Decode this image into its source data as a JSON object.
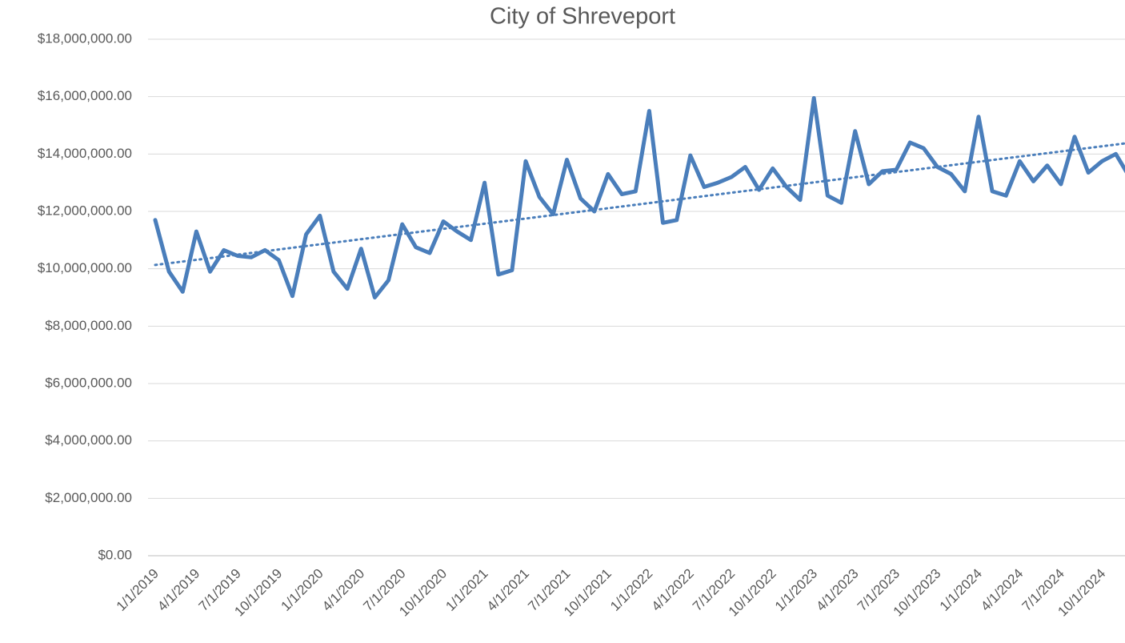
{
  "chart_data": {
    "type": "line",
    "title": "City of Shreveport",
    "categories": [
      "1/1/2019",
      null,
      null,
      "4/1/2019",
      null,
      null,
      "7/1/2019",
      null,
      null,
      "10/1/2019",
      null,
      null,
      "1/1/2020",
      null,
      null,
      "4/1/2020",
      null,
      null,
      "7/1/2020",
      null,
      null,
      "10/1/2020",
      null,
      null,
      "1/1/2021",
      null,
      null,
      "4/1/2021",
      null,
      null,
      "7/1/2021",
      null,
      null,
      "10/1/2021",
      null,
      null,
      "1/1/2022",
      null,
      null,
      "4/1/2022",
      null,
      null,
      "7/1/2022",
      null,
      null,
      "10/1/2022",
      null,
      null,
      "1/1/2023",
      null,
      null,
      "4/1/2023",
      null,
      null,
      "7/1/2023",
      null,
      null,
      "10/1/2023",
      null,
      null,
      "1/1/2024",
      null,
      null,
      "4/1/2024",
      null,
      null,
      "7/1/2024",
      null,
      null,
      "10/1/2024",
      null,
      null
    ],
    "series": [
      {
        "color": "#4a7ebb",
        "values": [
          11700000,
          9900000,
          9200000,
          11300000,
          9900000,
          10650000,
          10450000,
          10400000,
          10650000,
          10300000,
          9050000,
          11200000,
          11850000,
          9900000,
          9300000,
          10700000,
          9000000,
          9600000,
          11550000,
          10750000,
          10550000,
          11650000,
          11300000,
          11000000,
          13000000,
          9800000,
          9950000,
          13750000,
          12500000,
          11900000,
          13800000,
          12450000,
          12000000,
          13300000,
          12600000,
          12700000,
          15500000,
          11600000,
          11700000,
          13950000,
          12850000,
          13000000,
          13200000,
          13550000,
          12750000,
          13500000,
          12850000,
          12400000,
          15950000,
          12550000,
          12300000,
          14800000,
          12950000,
          13400000,
          13450000,
          14400000,
          14200000,
          13550000,
          13300000,
          12700000,
          15300000,
          12700000,
          12550000,
          13750000,
          13050000,
          13600000,
          12950000,
          14600000,
          13350000,
          13750000,
          14000000,
          13200000
        ]
      }
    ],
    "trendline": {
      "type": "linear",
      "color": "#4a7ebb"
    },
    "ylim": [
      0,
      18000000
    ],
    "yticks": [
      {
        "value": 0,
        "label": "$0.00"
      },
      {
        "value": 2000000,
        "label": "$2,000,000.00"
      },
      {
        "value": 4000000,
        "label": "$4,000,000.00"
      },
      {
        "value": 6000000,
        "label": "$6,000,000.00"
      },
      {
        "value": 8000000,
        "label": "$8,000,000.00"
      },
      {
        "value": 10000000,
        "label": "$10,000,000.00"
      },
      {
        "value": 12000000,
        "label": "$12,000,000.00"
      },
      {
        "value": 14000000,
        "label": "$14,000,000.00"
      },
      {
        "value": 16000000,
        "label": "$16,000,000.00"
      },
      {
        "value": 18000000,
        "label": "$18,000,000.00"
      }
    ],
    "grid": true
  }
}
